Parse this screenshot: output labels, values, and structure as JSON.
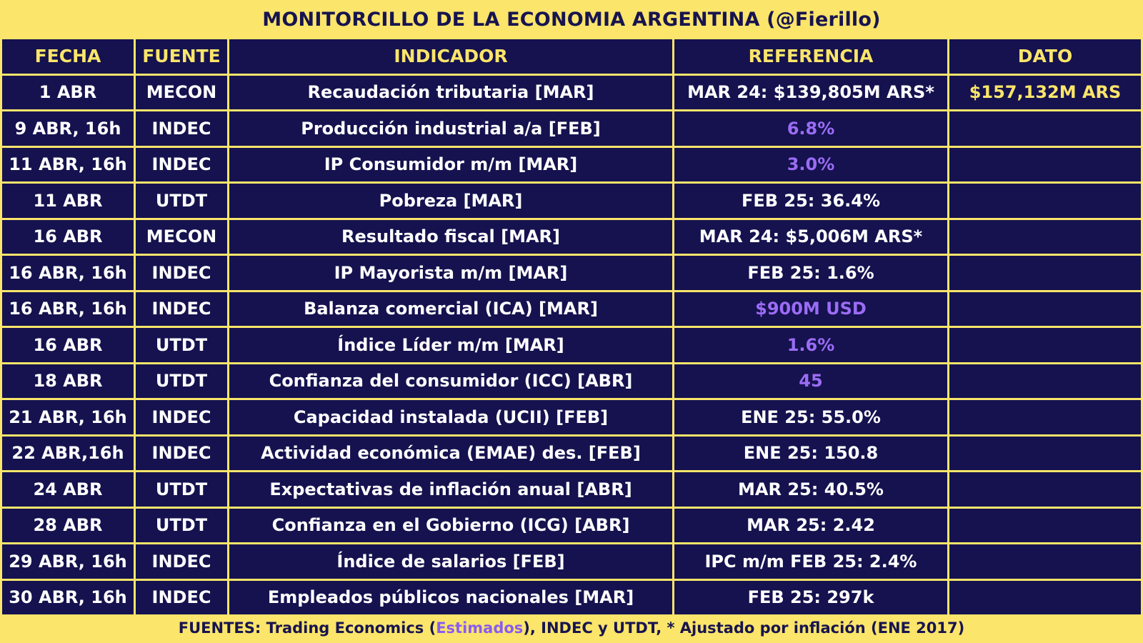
{
  "title": "MONITORCILLO DE LA ECONOMIA ARGENTINA (@Fierillo)",
  "headers": {
    "fecha": "FECHA",
    "fuente": "FUENTE",
    "indicador": "INDICADOR",
    "referencia": "REFERENCIA",
    "dato": "DATO"
  },
  "rows": [
    {
      "fecha": "1 ABR",
      "fuente": "MECON",
      "indicador": "Recaudación tributaria [MAR]",
      "referencia": "MAR 24: $139,805M ARS*",
      "dato": "$157,132M ARS"
    },
    {
      "fecha": "9 ABR, 16h",
      "fuente": "INDEC",
      "indicador": "Producción industrial a/a [FEB]",
      "referencia": "6.8%",
      "dato": ""
    },
    {
      "fecha": "11 ABR, 16h",
      "fuente": "INDEC",
      "indicador": "IP Consumidor m/m [MAR]",
      "referencia": "3.0%",
      "dato": ""
    },
    {
      "fecha": "11 ABR",
      "fuente": "UTDT",
      "indicador": "Pobreza [MAR]",
      "referencia": "FEB 25: 36.4%",
      "dato": ""
    },
    {
      "fecha": "16 ABR",
      "fuente": "MECON",
      "indicador": "Resultado fiscal [MAR]",
      "referencia": "MAR 24: $5,006M ARS*",
      "dato": ""
    },
    {
      "fecha": "16 ABR, 16h",
      "fuente": "INDEC",
      "indicador": "IP Mayorista m/m [MAR]",
      "referencia": "FEB 25: 1.6%",
      "dato": ""
    },
    {
      "fecha": "16 ABR, 16h",
      "fuente": "INDEC",
      "indicador": "Balanza comercial (ICA) [MAR]",
      "referencia": "$900M USD",
      "dato": ""
    },
    {
      "fecha": "16 ABR",
      "fuente": "UTDT",
      "indicador": "Índice Líder m/m [MAR]",
      "referencia": "1.6%",
      "dato": ""
    },
    {
      "fecha": "18 ABR",
      "fuente": "UTDT",
      "indicador": "Confianza del consumidor (ICC) [ABR]",
      "referencia": "45",
      "dato": ""
    },
    {
      "fecha": "21 ABR, 16h",
      "fuente": "INDEC",
      "indicador": "Capacidad instalada (UCII) [FEB]",
      "referencia": "ENE 25: 55.0%",
      "dato": ""
    },
    {
      "fecha": "22 ABR,16h",
      "fuente": "INDEC",
      "indicador": "Actividad económica (EMAE) des. [FEB]",
      "referencia": "ENE 25: 150.8",
      "dato": ""
    },
    {
      "fecha": "24 ABR",
      "fuente": "UTDT",
      "indicador": "Expectativas de inflación anual [ABR]",
      "referencia": "MAR 25: 40.5%",
      "dato": ""
    },
    {
      "fecha": "28 ABR",
      "fuente": "UTDT",
      "indicador": "Confianza en el Gobierno (ICG) [ABR]",
      "referencia": "MAR 25: 2.42",
      "dato": ""
    },
    {
      "fecha": "29 ABR, 16h",
      "fuente": "INDEC",
      "indicador": "Índice de salarios [FEB]",
      "referencia": "IPC m/m FEB 25: 2.4%",
      "dato": ""
    },
    {
      "fecha": "30 ABR, 16h",
      "fuente": "INDEC",
      "indicador": "Empleados públicos nacionales [MAR]",
      "referencia": "FEB 25: 297k",
      "dato": ""
    }
  ],
  "footer": {
    "prefix": "FUENTES: Trading Economics (",
    "estimados": "Estimados",
    "suffix": "), INDEC y UTDT, * Ajustado por inflación (ENE 2017)"
  },
  "colors": {
    "background": "#fbe56a",
    "cell": "#15124f",
    "header_text": "#fbe56a",
    "estimated": "#9b6cf5",
    "text": "#ffffff"
  }
}
